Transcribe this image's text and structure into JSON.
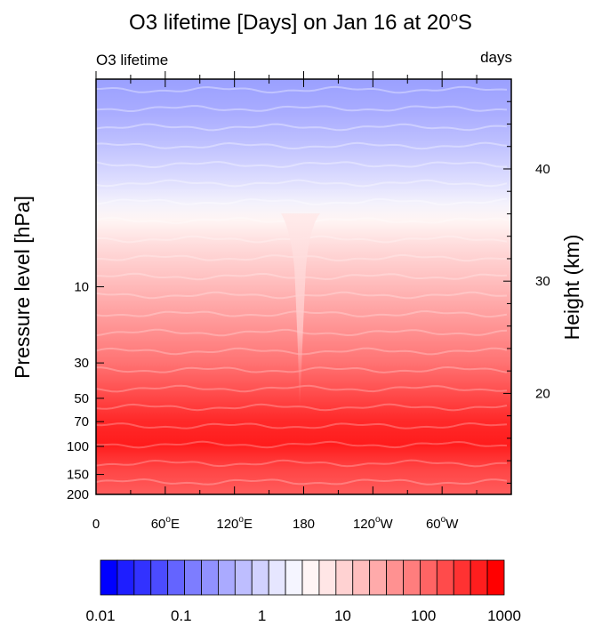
{
  "title": {
    "main": "O3 lifetime [Days] on  Jan 16  at 20",
    "degree": "o",
    "suffix": "S"
  },
  "corner_left": "O3 lifetime",
  "corner_right": "days",
  "y_left_label": "Pressure level [hPa]",
  "y_right_label": "Height (km)",
  "x_ticks": [
    {
      "lon": 0,
      "text": "0",
      "deg": "",
      "dir": ""
    },
    {
      "lon": 60,
      "text": "60",
      "deg": "o",
      "dir": "E"
    },
    {
      "lon": 120,
      "text": "120",
      "deg": "o",
      "dir": "E"
    },
    {
      "lon": 180,
      "text": "180",
      "deg": "",
      "dir": ""
    },
    {
      "lon": 240,
      "text": "120",
      "deg": "o",
      "dir": "W"
    },
    {
      "lon": 300,
      "text": "60",
      "deg": "o",
      "dir": "W"
    }
  ],
  "pressure_ticks": [
    "10",
    "30",
    "50",
    "70",
    "100",
    "150",
    "200"
  ],
  "height_ticks": [
    "20",
    "30",
    "40"
  ],
  "colorbar_labels": [
    "0.01",
    "0.1",
    "1",
    "10",
    "100",
    "1000"
  ],
  "colors": {
    "colorbar": [
      "#0000ff",
      "#1e1eff",
      "#3232ff",
      "#4b4bff",
      "#6464ff",
      "#7d7dff",
      "#9191ff",
      "#aaaaff",
      "#bebeff",
      "#d2d2ff",
      "#e6e6ff",
      "#f5f5ff",
      "#fff5f5",
      "#ffe6e6",
      "#ffd2d2",
      "#ffbebe",
      "#ffaaaa",
      "#ff9191",
      "#ff7d7d",
      "#ff6464",
      "#ff4b4b",
      "#ff3232",
      "#ff1e1e",
      "#ff0000"
    ]
  },
  "chart_data": {
    "type": "heatmap",
    "title": "O3 lifetime [Days] on Jan 16 at 20°S",
    "xlabel": "",
    "ylabel": "Pressure level [hPa]",
    "y2label": "Height (km)",
    "units": "days",
    "x_range": [
      0,
      360
    ],
    "pressure_range_hPa": [
      0.5,
      200
    ],
    "height_range_km": [
      11,
      48
    ],
    "y_scale": "log",
    "colorbar_scale": "log",
    "colorbar_range": [
      0.01,
      1000
    ],
    "x_ticks_lon": [
      0,
      60,
      120,
      180,
      240,
      300
    ],
    "pressure_ticks_hPa": [
      10,
      30,
      50,
      70,
      100,
      150,
      200
    ],
    "height_ticks_km": [
      20,
      30,
      40
    ],
    "profile": [
      {
        "pressure_hPa": 1,
        "lifetime_days": 0.05
      },
      {
        "pressure_hPa": 2,
        "lifetime_days": 0.2
      },
      {
        "pressure_hPa": 3,
        "lifetime_days": 0.6
      },
      {
        "pressure_hPa": 4,
        "lifetime_days": 1.5
      },
      {
        "pressure_hPa": 6,
        "lifetime_days": 4
      },
      {
        "pressure_hPa": 10,
        "lifetime_days": 15
      },
      {
        "pressure_hPa": 20,
        "lifetime_days": 60
      },
      {
        "pressure_hPa": 30,
        "lifetime_days": 150
      },
      {
        "pressure_hPa": 50,
        "lifetime_days": 400
      },
      {
        "pressure_hPa": 100,
        "lifetime_days": 900
      },
      {
        "pressure_hPa": 200,
        "lifetime_days": 400
      }
    ],
    "features": [
      {
        "lon": 175,
        "description": "narrow tongue of lower lifetime extending down to ~70 hPa"
      }
    ]
  }
}
